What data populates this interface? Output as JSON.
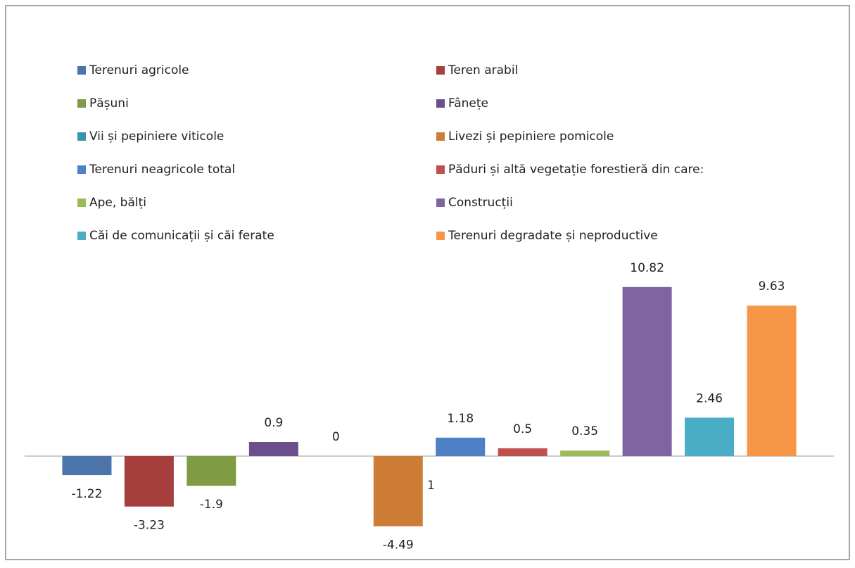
{
  "chart_data": {
    "type": "bar",
    "series": [
      {
        "name": "Terenuri agricole",
        "color": "#4a74aa",
        "values": [
          -1.22
        ]
      },
      {
        "name": "Teren arabil",
        "color": "#a43f3d",
        "values": [
          -3.23
        ]
      },
      {
        "name": "Pășuni",
        "color": "#7f9c45",
        "values": [
          -1.9
        ]
      },
      {
        "name": "Fânețe",
        "color": "#6a4f8c",
        "values": [
          0.9
        ]
      },
      {
        "name": "Vii și pepiniere viticole",
        "color": "#3a94ad",
        "values": [
          0
        ]
      },
      {
        "name": "Livezi și pepiniere pomicole",
        "color": "#cd7d35",
        "values": [
          -4.49
        ]
      },
      {
        "name": "Terenuri neagricole total",
        "color": "#4d80c4",
        "values": [
          1.18
        ]
      },
      {
        "name": "Păduri și altă vegetație forestieră din care:",
        "color": "#c0504d",
        "values": [
          0.5
        ]
      },
      {
        "name": "Ape, bălți",
        "color": "#9bbb59",
        "values": [
          0.35
        ]
      },
      {
        "name": "Construcții",
        "color": "#8064a2",
        "values": [
          10.82
        ]
      },
      {
        "name": "Căi de comunicații și căi ferate",
        "color": "#4bacc6",
        "values": [
          2.46
        ]
      },
      {
        "name": "Terenuri degradate și neproductive",
        "color": "#f79646",
        "values": [
          9.63
        ]
      }
    ],
    "annotation": "1",
    "ylim": [
      -6,
      12
    ],
    "legend": "top"
  }
}
